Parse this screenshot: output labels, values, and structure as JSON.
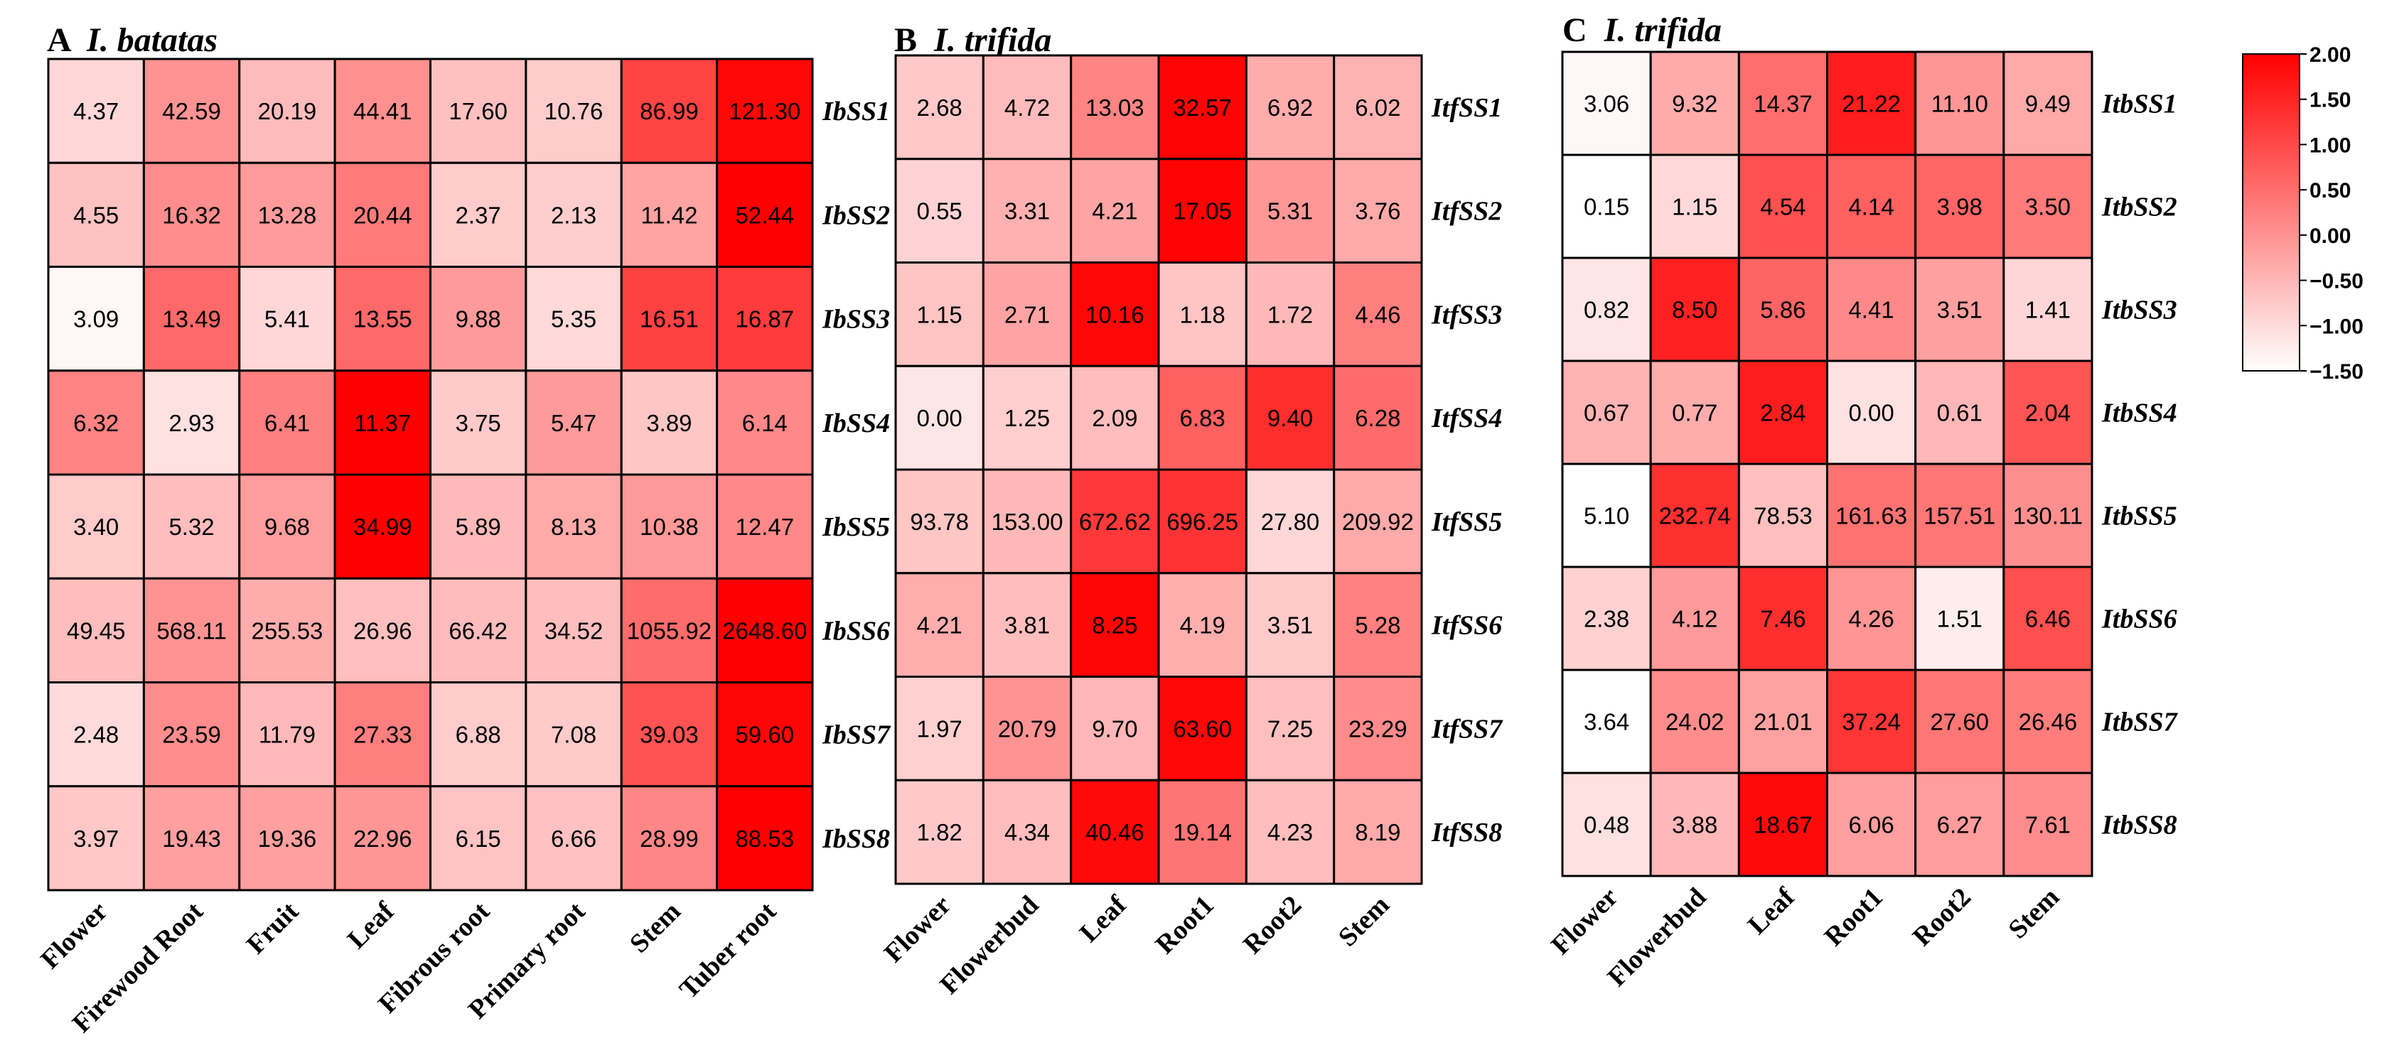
{
  "chart_data": [
    {
      "type": "heatmap",
      "panel": "A",
      "species": "I. batatas",
      "columns": [
        "Flower",
        "Firewood Root",
        "Fruit",
        "Leaf",
        "Fibrous root",
        "Primary root",
        "Stem",
        "Tuber root"
      ],
      "rows": [
        "IbSS1",
        "IbSS2",
        "IbSS3",
        "IbSS4",
        "IbSS5",
        "IbSS6",
        "IbSS7",
        "IbSS8"
      ],
      "values": [
        [
          "4.37",
          "42.59",
          "20.19",
          "44.41",
          "17.60",
          "10.76",
          "86.99",
          "121.30"
        ],
        [
          "4.55",
          "16.32",
          "13.28",
          "20.44",
          "2.37",
          "2.13",
          "11.42",
          "52.44"
        ],
        [
          "3.09",
          "13.49",
          "5.41",
          "13.55",
          "9.88",
          "5.35",
          "16.51",
          "16.87"
        ],
        [
          "6.32",
          "2.93",
          "6.41",
          "11.37",
          "3.75",
          "5.47",
          "3.89",
          "6.14"
        ],
        [
          "3.40",
          "5.32",
          "9.68",
          "34.99",
          "5.89",
          "8.13",
          "10.38",
          "12.47"
        ],
        [
          "49.45",
          "568.11",
          "255.53",
          "26.96",
          "66.42",
          "34.52",
          "1055.92",
          "2648.60"
        ],
        [
          "2.48",
          "23.59",
          "11.79",
          "27.33",
          "6.88",
          "7.08",
          "39.03",
          "59.60"
        ],
        [
          "3.97",
          "19.43",
          "19.36",
          "22.96",
          "6.15",
          "6.66",
          "28.99",
          "88.53"
        ]
      ]
    },
    {
      "type": "heatmap",
      "panel": "B",
      "species": "I. trifida",
      "columns": [
        "Flower",
        "Flowerbud",
        "Leaf",
        "Root1",
        "Root2",
        "Stem"
      ],
      "rows": [
        "ItfSS1",
        "ItfSS2",
        "ItfSS3",
        "ItfSS4",
        "ItfSS5",
        "ItfSS6",
        "ItfSS7",
        "ItfSS8"
      ],
      "values": [
        [
          "2.68",
          "4.72",
          "13.03",
          "32.57",
          "6.92",
          "6.02"
        ],
        [
          "0.55",
          "3.31",
          "4.21",
          "17.05",
          "5.31",
          "3.76"
        ],
        [
          "1.15",
          "2.71",
          "10.16",
          "1.18",
          "1.72",
          "4.46"
        ],
        [
          "0.00",
          "1.25",
          "2.09",
          "6.83",
          "9.40",
          "6.28"
        ],
        [
          "93.78",
          "153.00",
          "672.62",
          "696.25",
          "27.80",
          "209.92"
        ],
        [
          "4.21",
          "3.81",
          "8.25",
          "4.19",
          "3.51",
          "5.28"
        ],
        [
          "1.97",
          "20.79",
          "9.70",
          "63.60",
          "7.25",
          "23.29"
        ],
        [
          "1.82",
          "4.34",
          "40.46",
          "19.14",
          "4.23",
          "8.19"
        ]
      ]
    },
    {
      "type": "heatmap",
      "panel": "C",
      "species": "I. trifida",
      "columns": [
        "Flower",
        "Flowerbud",
        "Leaf",
        "Root1",
        "Root2",
        "Stem"
      ],
      "rows": [
        "ItbSS1",
        "ItbSS2",
        "ItbSS3",
        "ItbSS4",
        "ItbSS5",
        "ItbSS6",
        "ItbSS7",
        "ItbSS8"
      ],
      "values": [
        [
          "3.06",
          "9.32",
          "14.37",
          "21.22",
          "11.10",
          "9.49"
        ],
        [
          "0.15",
          "1.15",
          "4.54",
          "4.14",
          "3.98",
          "3.50"
        ],
        [
          "0.82",
          "8.50",
          "5.86",
          "4.41",
          "3.51",
          "1.41"
        ],
        [
          "0.67",
          "0.77",
          "2.84",
          "0.00",
          "0.61",
          "2.04"
        ],
        [
          "5.10",
          "232.74",
          "78.53",
          "161.63",
          "157.51",
          "130.11"
        ],
        [
          "2.38",
          "4.12",
          "7.46",
          "4.26",
          "1.51",
          "6.46"
        ],
        [
          "3.64",
          "24.02",
          "21.01",
          "37.24",
          "27.60",
          "26.46"
        ],
        [
          "0.48",
          "3.88",
          "18.67",
          "6.06",
          "6.27",
          "7.61"
        ]
      ]
    }
  ],
  "colorbar": {
    "min": -1.5,
    "max": 2.0,
    "low_color": "#ffffff",
    "high_color": "#ff0000",
    "ticks": [
      "2.00",
      "1.50",
      "1.00",
      "0.50",
      "0.00",
      "−0.50",
      "−1.00",
      "−1.50"
    ]
  },
  "colors": {
    "grid": "#000000",
    "text": "#000000"
  }
}
